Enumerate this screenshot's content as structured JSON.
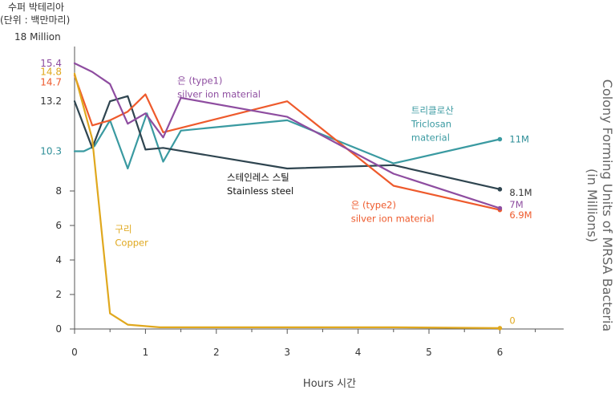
{
  "chart_data": {
    "type": "line",
    "ylabel_lines": [
      "수퍼 박테리아",
      "(단위 : 백만마리)"
    ],
    "y_top_label": "18 Million",
    "xlabel": "Hours 시간",
    "right_title_lines": [
      "Colony Forming Units of MRSA Bacteria",
      "(in Millions)"
    ],
    "xlim": [
      0,
      6.9
    ],
    "ylim": [
      0,
      17
    ],
    "x_ticks": [
      0,
      1,
      2,
      3,
      4,
      5,
      6
    ],
    "x_tick_labels": [
      "0",
      "1",
      "2",
      "3",
      "4",
      "5",
      "6"
    ],
    "y_ticks": [
      0,
      2,
      4,
      6,
      8
    ],
    "y_tick_labels": [
      "0",
      "2",
      "4",
      "6",
      "8"
    ],
    "start_labels": [
      {
        "text": "15.4",
        "y": 15.4,
        "color": "#8e4da0"
      },
      {
        "text": "14.8",
        "y": 14.9,
        "color": "#e0a81e"
      },
      {
        "text": "14.7",
        "y": 14.3,
        "color": "#ee5a2c"
      },
      {
        "text": "13.2",
        "y": 13.2,
        "color": "#333333"
      },
      {
        "text": "10.3",
        "y": 10.3,
        "color": "#2f8f98"
      }
    ],
    "series": [
      {
        "key": "triclosan",
        "label_lines": [
          "트리클로산",
          "Triclosan",
          "material"
        ],
        "label_at": [
          4.75,
          12.5
        ],
        "color": "#3a9aa1",
        "x": [
          0,
          0.13,
          0.28,
          0.5,
          0.75,
          1.02,
          1.25,
          1.5,
          3,
          4.5,
          6
        ],
        "y": [
          10.3,
          10.3,
          10.6,
          12.1,
          9.3,
          12.5,
          9.7,
          11.5,
          12.1,
          9.6,
          11
        ],
        "end_label": "11M",
        "end_label_y": 11,
        "end_label_color": "#2f8f98"
      },
      {
        "key": "stainless",
        "label_lines": [
          "스테인레스 스틸",
          "Stainless steel"
        ],
        "label_at": [
          2.15,
          8.6
        ],
        "color": "#2f4550",
        "x": [
          0,
          0.25,
          0.5,
          0.75,
          1,
          1.25,
          3,
          4.5,
          6
        ],
        "y": [
          13.2,
          10.5,
          13.2,
          13.5,
          10.4,
          10.5,
          9.3,
          9.5,
          8.1
        ],
        "end_label": "8.1M",
        "end_label_y": 7.9,
        "end_label_color": "#333333"
      },
      {
        "key": "type2",
        "label_lines": [
          "은 (type2)",
          "silver ion material"
        ],
        "label_at": [
          3.9,
          7.0
        ],
        "color": "#ee5a2c",
        "x": [
          0,
          0.25,
          0.5,
          0.75,
          1,
          1.25,
          3,
          4.5,
          6
        ],
        "y": [
          14.7,
          11.8,
          12.1,
          12.6,
          13.6,
          11.4,
          13.2,
          8.3,
          6.9
        ],
        "end_label": "6.9M",
        "end_label_y": 6.6,
        "end_label_color": "#ee5a2c"
      },
      {
        "key": "type1",
        "label_lines": [
          "은 (type1)",
          "silver ion material"
        ],
        "label_at": [
          1.45,
          14.2
        ],
        "color": "#8e4da0",
        "x": [
          0,
          0.25,
          0.5,
          0.75,
          1,
          1.25,
          1.5,
          3,
          4.5,
          6
        ],
        "y": [
          15.4,
          14.9,
          14.2,
          11.9,
          12.5,
          11.1,
          13.4,
          12.3,
          9.0,
          7.0
        ],
        "end_label": "7M",
        "end_label_y": 7.2,
        "end_label_color": "#8e4da0"
      },
      {
        "key": "copper",
        "label_lines": [
          "구리",
          "Copper"
        ],
        "label_at": [
          0.57,
          5.6
        ],
        "color": "#e0a81e",
        "x": [
          0,
          0.25,
          0.5,
          0.75,
          1.2,
          1.5,
          3,
          4.5,
          6
        ],
        "y": [
          14.8,
          11.0,
          0.9,
          0.25,
          0.1,
          0.1,
          0.1,
          0.1,
          0.05
        ],
        "end_label": "0",
        "end_label_y": 0.5,
        "end_label_color": "#e0a81e"
      }
    ]
  }
}
